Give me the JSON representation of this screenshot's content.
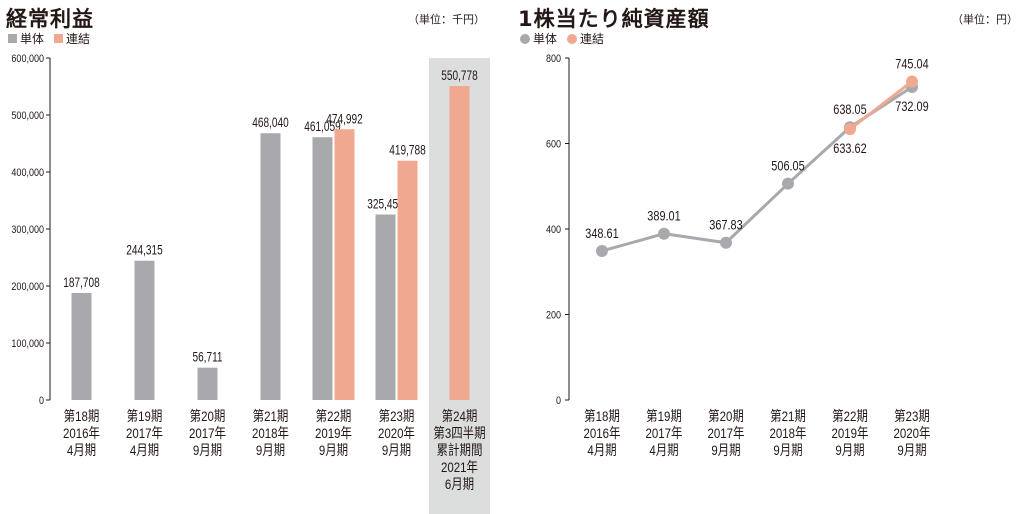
{
  "colors": {
    "single": "#a7a9ac",
    "consolidated": "#f1a890",
    "highlight": "#dcdddd",
    "axis": "#231815"
  },
  "chart_data": [
    {
      "type": "bar",
      "title": "経常利益",
      "unit": "（単位：千円）",
      "legend": [
        "単体",
        "連結"
      ],
      "ylim": [
        0,
        600000
      ],
      "y_ticks": [
        "0",
        "100,000",
        "200,000",
        "300,000",
        "400,000",
        "500,000",
        "600,000"
      ],
      "categories": [
        [
          "第18期",
          "2016年",
          "4月期"
        ],
        [
          "第19期",
          "2017年",
          "4月期"
        ],
        [
          "第20期",
          "2017年",
          "9月期"
        ],
        [
          "第21期",
          "2018年",
          "9月期"
        ],
        [
          "第22期",
          "2019年",
          "9月期"
        ],
        [
          "第23期",
          "2020年",
          "9月期"
        ],
        [
          "第24期",
          "第3四半期",
          "累計期間",
          "2021年",
          "6月期"
        ]
      ],
      "series": [
        {
          "name": "単体",
          "values": [
            187708,
            244315,
            56711,
            468040,
            461059,
            325453,
            null
          ],
          "labels": [
            "187,708",
            "244,315",
            "56,711",
            "468,040",
            "461,059",
            "325,453",
            null
          ]
        },
        {
          "name": "連結",
          "values": [
            null,
            null,
            null,
            null,
            474992,
            419788,
            550778
          ],
          "labels": [
            null,
            null,
            null,
            null,
            "474,992",
            "419,788",
            "550,778"
          ]
        }
      ],
      "highlight_category": 6
    },
    {
      "type": "line",
      "title": "1株当たり純資産額",
      "unit": "（単位：円）",
      "legend": [
        "単体",
        "連結"
      ],
      "ylim": [
        0,
        800
      ],
      "y_ticks": [
        "0",
        "200",
        "400",
        "600",
        "800"
      ],
      "categories": [
        [
          "第18期",
          "2016年",
          "4月期"
        ],
        [
          "第19期",
          "2017年",
          "4月期"
        ],
        [
          "第20期",
          "2017年",
          "9月期"
        ],
        [
          "第21期",
          "2018年",
          "9月期"
        ],
        [
          "第22期",
          "2019年",
          "9月期"
        ],
        [
          "第23期",
          "2020年",
          "9月期"
        ]
      ],
      "series": [
        {
          "name": "単体",
          "values": [
            348.61,
            389.01,
            367.83,
            506.05,
            638.05,
            732.09
          ],
          "labels": [
            "348.61",
            "389.01",
            "367.83",
            "506.05",
            "638.05",
            "732.09"
          ]
        },
        {
          "name": "連結",
          "values": [
            null,
            null,
            null,
            null,
            633.62,
            745.04
          ],
          "labels": [
            null,
            null,
            null,
            null,
            "633.62",
            "745.04"
          ]
        }
      ]
    }
  ]
}
